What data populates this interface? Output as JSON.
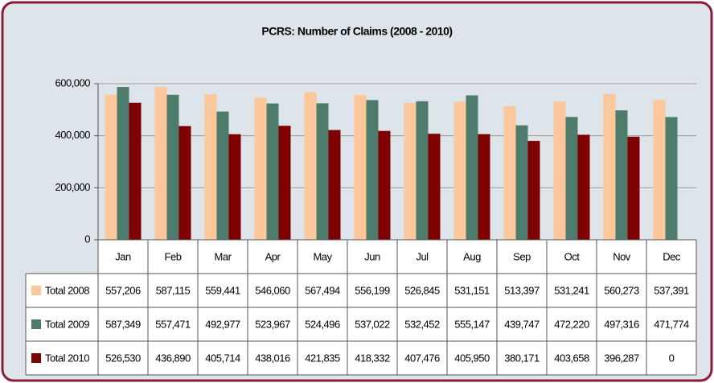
{
  "chart_data": {
    "type": "bar",
    "title": "PCRS: Number of Claims (2008 - 2010)",
    "categories": [
      "Jan",
      "Feb",
      "Mar",
      "Apr",
      "May",
      "Jun",
      "Jul",
      "Aug",
      "Sep",
      "Oct",
      "Nov",
      "Dec"
    ],
    "series": [
      {
        "name": "Total 2008",
        "color": "#fcc89b",
        "values": [
          557206,
          587115,
          559441,
          546060,
          567494,
          556199,
          526845,
          531151,
          513397,
          531241,
          560273,
          537391
        ],
        "value_labels": [
          "557,206",
          "587,115",
          "559,441",
          "546,060",
          "567,494",
          "556,199",
          "526,845",
          "531,151",
          "513,397",
          "531,241",
          "560,273",
          "537,391"
        ]
      },
      {
        "name": "Total 2009",
        "color": "#4d7b6c",
        "values": [
          587349,
          557471,
          492977,
          523967,
          524496,
          537022,
          532452,
          555147,
          439747,
          472220,
          497316,
          471774
        ],
        "value_labels": [
          "587,349",
          "557,471",
          "492,977",
          "523,967",
          "524,496",
          "537,022",
          "532,452",
          "555,147",
          "439,747",
          "472,220",
          "497,316",
          "471,774"
        ]
      },
      {
        "name": "Total 2010",
        "color": "#7f0000",
        "values": [
          526530,
          436890,
          405714,
          438016,
          421835,
          418332,
          407476,
          405950,
          380171,
          403658,
          396287,
          0
        ],
        "value_labels": [
          "526,530",
          "436,890",
          "405,714",
          "438,016",
          "421,835",
          "418,332",
          "407,476",
          "405,950",
          "380,171",
          "403,658",
          "396,287",
          "0"
        ]
      }
    ],
    "ylim": [
      0,
      600000
    ],
    "yticks": [
      0,
      {
        "value": 200000,
        "label": "200,000"
      },
      {
        "value": 400000,
        "label": "400,000"
      },
      {
        "value": 600000,
        "label": "600,000"
      }
    ],
    "grid": true
  }
}
